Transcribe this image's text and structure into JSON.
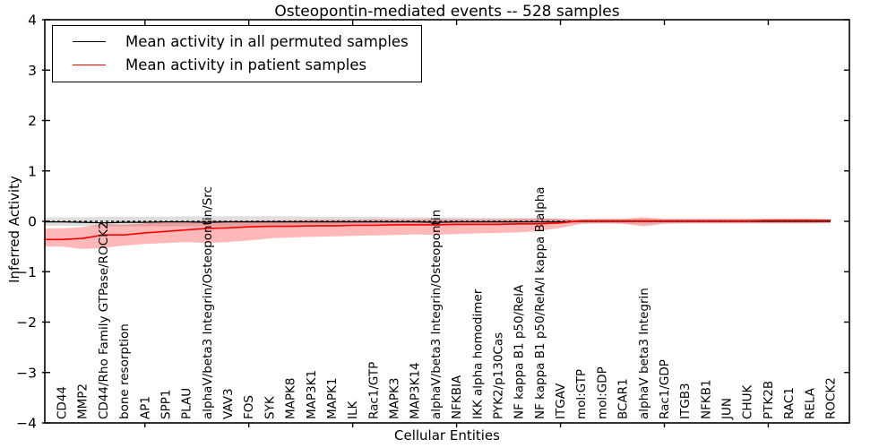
{
  "chart_data": {
    "type": "line",
    "title": "Osteopontin-mediated events -- 528 samples",
    "xlabel": "Cellular Entities",
    "ylabel": "Inferred Activity",
    "ylim": [
      -4,
      4
    ],
    "grid": false,
    "legend_position": "upper left",
    "yticks": [
      {
        "label": "4",
        "value": 4
      },
      {
        "label": "3",
        "value": 3
      },
      {
        "label": "2",
        "value": 2
      },
      {
        "label": "1",
        "value": 1
      },
      {
        "label": "0",
        "value": 0
      },
      {
        "label": "−1",
        "value": -1
      },
      {
        "label": "−2",
        "value": -2
      },
      {
        "label": "−3",
        "value": -3
      },
      {
        "label": "−4",
        "value": -4
      }
    ],
    "x_major_tick_indices": [
      4,
      9,
      14,
      19,
      24,
      29,
      34
    ],
    "categories": [
      "CD44",
      "MMP2",
      "CD44/Rho Family GTPase/ROCK2",
      "bone resorption",
      "AP1",
      "SPP1",
      "PLAU",
      "alphaV/beta3 Integrin/Osteopontin/Src",
      "VAV3",
      "FOS",
      "SYK",
      "MAPK8",
      "MAP3K1",
      "MAPK1",
      "ILK",
      "Rac1/GTP",
      "MAPK3",
      "MAP3K14",
      "alphaV/beta3 Integrin/Osteopontin",
      "NFKBIA",
      "IKK alpha homodimer",
      "PYK2/p130Cas",
      "NF kappa B1 p50/RelA",
      "NF kappa B1 p50/RelA/I kappa B alpha",
      "ITGAV",
      "mol:GTP",
      "mol:GDP",
      "BCAR1",
      "alphaV beta3 Integrin",
      "Rac1/GDP",
      "ITGB3",
      "NFKB1",
      "JUN",
      "CHUK",
      "PTK2B",
      "RAC1",
      "RELA",
      "ROCK2"
    ],
    "legend_entries": [
      {
        "label": "Mean activity in all permuted samples",
        "color": "#000000"
      },
      {
        "label": "Mean activity in patient samples",
        "color": "#ff0000"
      }
    ],
    "series": [
      {
        "name": "permuted-band",
        "type": "band",
        "color": "#000000",
        "opacity": 0.13,
        "upper": [
          0.08,
          0.08,
          0.09,
          0.09,
          0.09,
          0.09,
          0.1,
          0.1,
          0.1,
          0.1,
          0.1,
          0.1,
          0.09,
          0.09,
          0.09,
          0.09,
          0.08,
          0.08,
          0.08,
          0.08,
          0.07,
          0.07,
          0.07,
          0.06,
          0.05,
          0.04,
          0.04,
          0.04,
          0.05,
          0.04,
          0.04,
          0.04,
          0.04,
          0.04,
          0.04,
          0.04,
          0.04,
          0.04
        ],
        "lower": [
          -0.09,
          -0.09,
          -0.1,
          -0.1,
          -0.1,
          -0.1,
          -0.1,
          -0.1,
          -0.1,
          -0.1,
          -0.1,
          -0.1,
          -0.09,
          -0.09,
          -0.09,
          -0.09,
          -0.08,
          -0.08,
          -0.08,
          -0.08,
          -0.07,
          -0.07,
          -0.07,
          -0.06,
          -0.05,
          -0.04,
          -0.04,
          -0.04,
          -0.05,
          -0.04,
          -0.04,
          -0.04,
          -0.04,
          -0.04,
          -0.04,
          -0.04,
          -0.04,
          -0.04
        ]
      },
      {
        "name": "patient-band",
        "type": "band",
        "color": "#ff0000",
        "opacity": 0.28,
        "upper": [
          -0.14,
          -0.11,
          -0.05,
          -0.07,
          -0.04,
          -0.02,
          -0.01,
          0.02,
          0.01,
          0.01,
          0.02,
          0.02,
          0.03,
          0.03,
          0.03,
          0.04,
          0.04,
          0.04,
          0.05,
          0.04,
          0.04,
          0.04,
          0.05,
          0.06,
          0.05,
          0.04,
          0.05,
          0.05,
          0.08,
          0.05,
          0.05,
          0.05,
          0.05,
          0.05,
          0.05,
          0.05,
          0.05,
          0.04
        ],
        "lower": [
          -0.5,
          -0.55,
          -0.53,
          -0.48,
          -0.45,
          -0.43,
          -0.41,
          -0.43,
          -0.41,
          -0.38,
          -0.34,
          -0.32,
          -0.31,
          -0.3,
          -0.29,
          -0.28,
          -0.27,
          -0.26,
          -0.27,
          -0.25,
          -0.24,
          -0.23,
          -0.22,
          -0.19,
          -0.13,
          -0.05,
          -0.04,
          -0.05,
          -0.1,
          -0.05,
          -0.04,
          -0.04,
          -0.04,
          -0.04,
          -0.04,
          -0.04,
          -0.04,
          -0.03
        ]
      },
      {
        "name": "Mean activity in all permuted samples",
        "type": "line",
        "color": "#000000",
        "width": 1.2,
        "values": [
          -0.01,
          -0.02,
          -0.03,
          -0.02,
          -0.02,
          -0.01,
          -0.01,
          -0.02,
          -0.01,
          -0.01,
          -0.01,
          -0.01,
          -0.01,
          -0.01,
          -0.01,
          -0.01,
          -0.01,
          -0.01,
          -0.02,
          -0.01,
          -0.01,
          -0.01,
          -0.01,
          -0.01,
          -0.01,
          0.0,
          0.0,
          0.0,
          0.0,
          0.0,
          0.0,
          0.0,
          0.0,
          0.0,
          0.0,
          0.0,
          0.0,
          0.0
        ]
      },
      {
        "name": "zero-line",
        "type": "hline",
        "value": 0,
        "style": "dashed",
        "color": "#000000",
        "width": 1.2
      },
      {
        "name": "Mean activity in patient samples",
        "type": "line",
        "color": "#ff0000",
        "width": 1.6,
        "values": [
          -0.36,
          -0.34,
          -0.27,
          -0.27,
          -0.23,
          -0.2,
          -0.17,
          -0.14,
          -0.13,
          -0.11,
          -0.1,
          -0.1,
          -0.09,
          -0.09,
          -0.08,
          -0.08,
          -0.07,
          -0.07,
          -0.07,
          -0.06,
          -0.06,
          -0.06,
          -0.05,
          -0.05,
          -0.03,
          0.01,
          0.01,
          0.01,
          0.01,
          0.01,
          0.01,
          0.01,
          0.01,
          0.01,
          0.02,
          0.02,
          0.02,
          0.02
        ]
      }
    ]
  }
}
